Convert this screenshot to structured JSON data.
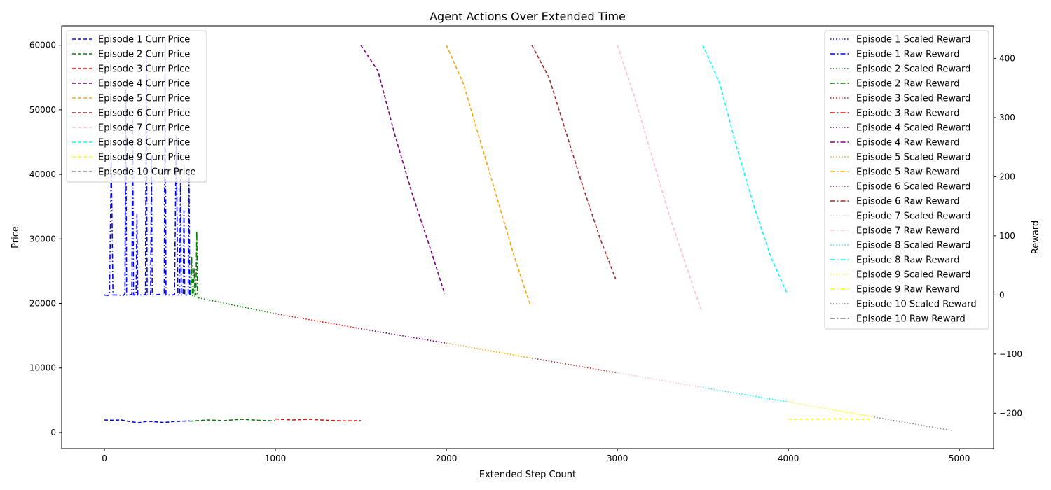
{
  "chart_data": {
    "type": "line",
    "title": "Agent Actions Over Extended Time",
    "xlabel": "Extended Step Count",
    "ylabel": "Price",
    "y2label": "Reward",
    "xlim": [
      -250,
      5200
    ],
    "ylim": [
      -2500,
      63000
    ],
    "y2lim": [
      -260,
      455
    ],
    "xticks": [
      0,
      1000,
      2000,
      3000,
      4000,
      5000
    ],
    "yticks": [
      0,
      10000,
      20000,
      30000,
      40000,
      50000,
      60000
    ],
    "y2ticks": [
      -200,
      -100,
      0,
      100,
      200,
      300,
      400
    ],
    "grid": false,
    "legend_left": {
      "placement": "upper-left",
      "entries": [
        {
          "label": "Episode 1 Curr Price",
          "color": "#0000ff",
          "style": "dashed"
        },
        {
          "label": "Episode 2 Curr Price",
          "color": "#008000",
          "style": "dashed"
        },
        {
          "label": "Episode 3 Curr Price",
          "color": "#ff0000",
          "style": "dashed"
        },
        {
          "label": "Episode 4 Curr Price",
          "color": "#800080",
          "style": "dashed"
        },
        {
          "label": "Episode 5 Curr Price",
          "color": "#ffa500",
          "style": "dashed"
        },
        {
          "label": "Episode 6 Curr Price",
          "color": "#a52a2a",
          "style": "dashed"
        },
        {
          "label": "Episode 7 Curr Price",
          "color": "#ffc0cb",
          "style": "dashed"
        },
        {
          "label": "Episode 8 Curr Price",
          "color": "#00ffff",
          "style": "dashed"
        },
        {
          "label": "Episode 9 Curr Price",
          "color": "#ffff00",
          "style": "dashed"
        },
        {
          "label": "Episode 10 Curr Price",
          "color": "#808080",
          "style": "dashed"
        }
      ]
    },
    "legend_right": {
      "placement": "upper-right",
      "entries": [
        {
          "label": "Episode 1 Scaled Reward",
          "color": "#0000ff",
          "style": "dotted"
        },
        {
          "label": "Episode 1 Raw Reward",
          "color": "#0000ff",
          "style": "dashdot"
        },
        {
          "label": "Episode 2 Scaled Reward",
          "color": "#008000",
          "style": "dotted"
        },
        {
          "label": "Episode 2 Raw Reward",
          "color": "#008000",
          "style": "dashdot"
        },
        {
          "label": "Episode 3 Scaled Reward",
          "color": "#ff0000",
          "style": "dotted"
        },
        {
          "label": "Episode 3 Raw Reward",
          "color": "#ff0000",
          "style": "dashdot"
        },
        {
          "label": "Episode 4 Scaled Reward",
          "color": "#800080",
          "style": "dotted"
        },
        {
          "label": "Episode 4 Raw Reward",
          "color": "#800080",
          "style": "dashdot"
        },
        {
          "label": "Episode 5 Scaled Reward",
          "color": "#ffa500",
          "style": "dotted"
        },
        {
          "label": "Episode 5 Raw Reward",
          "color": "#ffa500",
          "style": "dashdot"
        },
        {
          "label": "Episode 6 Scaled Reward",
          "color": "#a52a2a",
          "style": "dotted"
        },
        {
          "label": "Episode 6 Raw Reward",
          "color": "#a52a2a",
          "style": "dashdot"
        },
        {
          "label": "Episode 7 Scaled Reward",
          "color": "#ffc0cb",
          "style": "dotted"
        },
        {
          "label": "Episode 7 Raw Reward",
          "color": "#ffc0cb",
          "style": "dashdot"
        },
        {
          "label": "Episode 8 Scaled Reward",
          "color": "#00ffff",
          "style": "dotted"
        },
        {
          "label": "Episode 8 Raw Reward",
          "color": "#00ffff",
          "style": "dashdot"
        },
        {
          "label": "Episode 9 Scaled Reward",
          "color": "#ffff00",
          "style": "dotted"
        },
        {
          "label": "Episode 9 Raw Reward",
          "color": "#ffff00",
          "style": "dashdot"
        },
        {
          "label": "Episode 10 Scaled Reward",
          "color": "#808080",
          "style": "dotted"
        },
        {
          "label": "Episode 10 Raw Reward",
          "color": "#808080",
          "style": "dashdot"
        }
      ]
    },
    "series": [
      {
        "name": "Episode 1 Curr Price",
        "axis": "left",
        "color": "#0000ff",
        "style": "dashed",
        "x": [
          0,
          50,
          100,
          150,
          200,
          250,
          300,
          350,
          400,
          450,
          499
        ],
        "y": [
          1950,
          1900,
          1950,
          1700,
          1500,
          1750,
          1650,
          1550,
          1700,
          1750,
          1800
        ]
      },
      {
        "name": "Episode 2 Curr Price",
        "axis": "left",
        "color": "#008000",
        "style": "dashed",
        "x": [
          500,
          600,
          700,
          800,
          900,
          999
        ],
        "y": [
          1750,
          1950,
          1850,
          2050,
          1900,
          1800
        ]
      },
      {
        "name": "Episode 3 Curr Price",
        "axis": "left",
        "color": "#ff0000",
        "style": "dashed",
        "x": [
          1000,
          1100,
          1200,
          1300,
          1400,
          1499
        ],
        "y": [
          2100,
          1950,
          2050,
          1900,
          1800,
          1850
        ]
      },
      {
        "name": "Episode 4 Curr Price",
        "axis": "left",
        "color": "#800080",
        "style": "dashed",
        "x": [
          1500,
          1600,
          1700,
          1800,
          1900,
          1990
        ],
        "y": [
          60000,
          56000,
          46000,
          37000,
          29000,
          21500
        ]
      },
      {
        "name": "Episode 5 Curr Price",
        "axis": "left",
        "color": "#ffa500",
        "style": "dashed",
        "x": [
          2000,
          2100,
          2200,
          2300,
          2400,
          2490
        ],
        "y": [
          60000,
          54000,
          45000,
          36000,
          27000,
          19800
        ]
      },
      {
        "name": "Episode 6 Curr Price",
        "axis": "left",
        "color": "#a52a2a",
        "style": "dashed",
        "x": [
          2500,
          2600,
          2700,
          2800,
          2900,
          2990
        ],
        "y": [
          60000,
          55000,
          46500,
          38000,
          30000,
          23800
        ]
      },
      {
        "name": "Episode 7 Curr Price",
        "axis": "left",
        "color": "#ffc0cb",
        "style": "dashed",
        "x": [
          3000,
          3100,
          3200,
          3300,
          3400,
          3490
        ],
        "y": [
          60000,
          52000,
          43000,
          34000,
          26000,
          19000
        ]
      },
      {
        "name": "Episode 8 Curr Price",
        "axis": "left",
        "color": "#00ffff",
        "style": "dashed",
        "x": [
          3500,
          3600,
          3700,
          3800,
          3900,
          3990
        ],
        "y": [
          60000,
          54000,
          44000,
          35000,
          27000,
          21700
        ]
      },
      {
        "name": "Episode 9 Curr Price",
        "axis": "left",
        "color": "#ffff00",
        "style": "dashed",
        "x": [
          4000,
          4100,
          4200,
          4300,
          4400,
          4490
        ],
        "y": [
          2000,
          2100,
          2050,
          2150,
          2000,
          2100
        ]
      },
      {
        "name": "Episode 1 Raw Reward",
        "axis": "right",
        "color": "#0000ff",
        "style": "dashdot",
        "x": [
          0,
          20,
          30,
          40,
          50,
          80,
          110,
          120,
          125,
          130,
          135,
          150,
          160,
          165,
          170,
          175,
          185,
          190,
          195,
          200,
          210,
          230,
          240,
          245,
          250,
          260,
          270,
          275,
          280,
          290,
          300,
          320,
          340,
          350,
          355,
          360,
          370,
          380,
          390,
          400,
          410,
          420,
          430,
          440,
          445,
          450,
          460,
          465,
          470,
          480,
          490,
          495,
          499
        ],
        "y": [
          0,
          -1,
          1,
          228,
          0,
          0,
          -1,
          2,
          348,
          0,
          0,
          0,
          1,
          301,
          0,
          0,
          1,
          137,
          0,
          0,
          0,
          0,
          1,
          408,
          0,
          1,
          0,
          237,
          0,
          0,
          0,
          1,
          0,
          0,
          434,
          0,
          0,
          0,
          0,
          0,
          1,
          270,
          0,
          0,
          196,
          0,
          0,
          143,
          0,
          0,
          0,
          211,
          0
        ]
      },
      {
        "name": "Episode 2 Raw Reward",
        "axis": "right",
        "color": "#008000",
        "style": "dashdot",
        "x": [
          500,
          505,
          510,
          515,
          520,
          525,
          530,
          535,
          540,
          545,
          550
        ],
        "y": [
          0,
          1,
          65,
          -2,
          2,
          45,
          -1,
          1,
          108,
          -2,
          -5
        ]
      },
      {
        "name": "Episode 2 Scaled Reward",
        "axis": "right",
        "color": "#008000",
        "style": "dotted",
        "x": [
          550,
          1000
        ],
        "y": [
          -5,
          -31.7
        ]
      },
      {
        "name": "Episode 3 Scaled Reward",
        "axis": "right",
        "color": "#ff0000",
        "style": "dotted",
        "x": [
          1000,
          1500
        ],
        "y": [
          -31.7,
          -57.2
        ]
      },
      {
        "name": "Episode 4 Scaled Reward",
        "axis": "right",
        "color": "#800080",
        "style": "dotted",
        "x": [
          1500,
          2000
        ],
        "y": [
          -57.2,
          -81.6
        ]
      },
      {
        "name": "Episode 5 Scaled Reward",
        "axis": "right",
        "color": "#ffa500",
        "style": "dotted",
        "x": [
          2000,
          2500
        ],
        "y": [
          -81.6,
          -106.9
        ]
      },
      {
        "name": "Episode 6 Scaled Reward",
        "axis": "right",
        "color": "#a52a2a",
        "style": "dotted",
        "x": [
          2500,
          3000
        ],
        "y": [
          -106.9,
          -131.7
        ]
      },
      {
        "name": "Episode 7 Scaled Reward",
        "axis": "right",
        "color": "#ffc0cb",
        "style": "dotted",
        "x": [
          3000,
          3500
        ],
        "y": [
          -131.7,
          -156.6
        ]
      },
      {
        "name": "Episode 8 Scaled Reward",
        "axis": "right",
        "color": "#00ffff",
        "style": "dotted",
        "x": [
          3500,
          4000
        ],
        "y": [
          -156.6,
          -181.3
        ]
      },
      {
        "name": "Episode 9 Scaled Reward",
        "axis": "right",
        "color": "#ffff00",
        "style": "dotted",
        "x": [
          4000,
          4500
        ],
        "y": [
          -181.3,
          -206.6
        ]
      },
      {
        "name": "Episode 10 Scaled Reward",
        "axis": "right",
        "color": "#808080",
        "style": "dotted",
        "x": [
          4500,
          4960
        ],
        "y": [
          -206.6,
          -229.5
        ]
      }
    ]
  }
}
